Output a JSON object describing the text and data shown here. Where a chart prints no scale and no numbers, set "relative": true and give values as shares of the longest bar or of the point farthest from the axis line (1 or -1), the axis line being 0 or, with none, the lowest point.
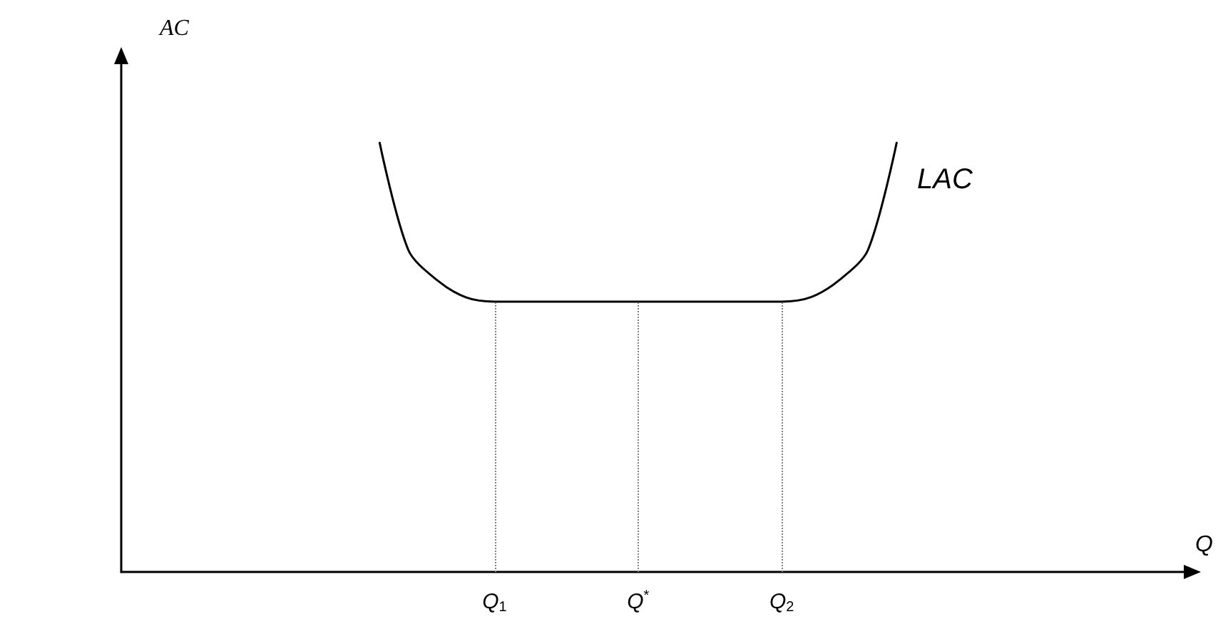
{
  "chart_data": {
    "type": "line",
    "relative": true,
    "ylabel": "AC",
    "xlabel": "Q",
    "grid": false,
    "marker": "none",
    "line_style": "solid",
    "categories": [
      null,
      null,
      null,
      null,
      null,
      null,
      null,
      null,
      null,
      null,
      null,
      null,
      null,
      "Q$_{1}$",
      null,
      null,
      null,
      null,
      "Q$^{*}$",
      null,
      null,
      null,
      null,
      "Q$_{2}$",
      null,
      null,
      null,
      null,
      null,
      null,
      null,
      null,
      null,
      null,
      null,
      null,
      null,
      null
    ],
    "series": [
      {
        "color": "#000000",
        "values": [
          null,
          null,
          null,
          null,
          null,
          null,
          null,
          null,
          null,
          1,
          0.75,
          0.68,
          0.64,
          0.63,
          0.63,
          0.63,
          0.63,
          0.63,
          0.63,
          0.63,
          0.63,
          0.63,
          0.63,
          0.63,
          0.64,
          0.68,
          0.75,
          1,
          null,
          null,
          null,
          null,
          null,
          null,
          null,
          null,
          null,
          null
        ]
      }
    ],
    "ref_lines": [
      {
        "axis": "x",
        "value": "Q$_{1}$",
        "line_style": "dotted",
        "color": "#808080"
      },
      {
        "axis": "x",
        "value": "Q$^{*}$",
        "line_style": "dotted",
        "color": "#808080"
      },
      {
        "axis": "x",
        "value": "Q$_{2}$",
        "line_style": "dotted",
        "color": "#808080"
      }
    ],
    "annotations": [
      "LAC"
    ]
  }
}
